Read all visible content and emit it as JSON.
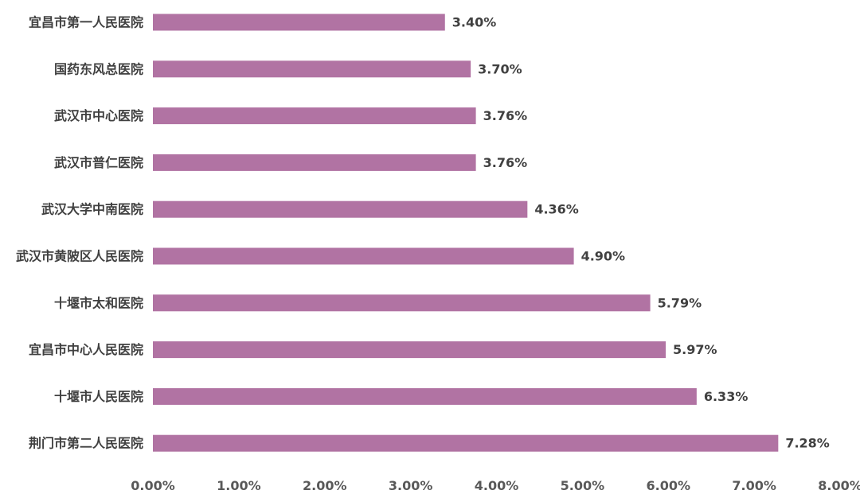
{
  "chart_data": {
    "type": "bar",
    "orientation": "horizontal",
    "title": "",
    "xlabel": "",
    "ylabel": "",
    "categories": [
      "宜昌市第一人民医院",
      "国药东风总医院",
      "武汉市中心医院",
      "武汉市普仁医院",
      "武汉大学中南医院",
      "武汉市黄陂区人民医院",
      "十堰市太和医院",
      "宜昌市中心人民医院",
      "十堰市人民医院",
      "荆门市第二人民医院"
    ],
    "values": [
      3.4,
      3.7,
      3.76,
      3.76,
      4.36,
      4.9,
      5.79,
      5.97,
      6.33,
      7.28
    ],
    "value_labels": [
      "3.40%",
      "3.70%",
      "3.76%",
      "3.76%",
      "4.36%",
      "4.90%",
      "5.79%",
      "5.97%",
      "6.33%",
      "7.28%"
    ],
    "xlim": [
      0,
      8
    ],
    "x_ticks": [
      0,
      1,
      2,
      3,
      4,
      5,
      6,
      7,
      8
    ],
    "x_tick_labels": [
      "0.00%",
      "1.00%",
      "2.00%",
      "3.00%",
      "4.00%",
      "5.00%",
      "6.00%",
      "7.00%",
      "8.00%"
    ],
    "grid": false,
    "legend": "none",
    "bar_color": "#b173a3"
  }
}
